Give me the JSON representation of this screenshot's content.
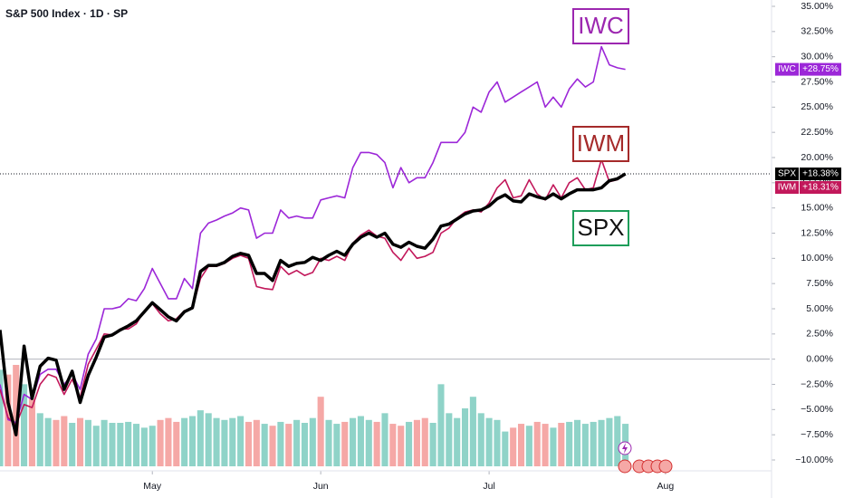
{
  "chart_data": {
    "type": "line",
    "title": "S&P 500 Index · 1D · SP",
    "x": [
      0,
      1,
      2,
      3,
      4,
      5,
      6,
      7,
      8,
      9,
      10,
      11,
      12,
      13,
      14,
      15,
      16,
      17,
      18,
      19,
      20,
      21,
      22,
      23,
      24,
      25,
      26,
      27,
      28,
      29,
      30,
      31,
      32,
      33,
      34,
      35,
      36,
      37,
      38,
      39,
      40,
      41,
      42,
      43,
      44,
      45,
      46,
      47,
      48,
      49,
      50,
      51,
      52,
      53,
      54,
      55,
      56,
      57,
      58,
      59,
      60,
      61,
      62,
      63,
      64,
      65,
      66,
      67,
      68,
      69,
      70,
      71,
      72,
      73,
      74,
      75,
      76,
      77,
      78
    ],
    "xlim": [
      0,
      96
    ],
    "xticks": [
      {
        "value": 19,
        "label": "May"
      },
      {
        "value": 40,
        "label": "Jun"
      },
      {
        "value": 61,
        "label": "Jul"
      },
      {
        "value": 83,
        "label": "Aug"
      }
    ],
    "ylim": [
      -10,
      35
    ],
    "yticks": [
      {
        "value": 35,
        "label": "35.00%"
      },
      {
        "value": 32.5,
        "label": "32.50%"
      },
      {
        "value": 30,
        "label": "30.00%"
      },
      {
        "value": 27.5,
        "label": "27.50%"
      },
      {
        "value": 25,
        "label": "25.00%"
      },
      {
        "value": 22.5,
        "label": "22.50%"
      },
      {
        "value": 20,
        "label": "20.00%"
      },
      {
        "value": 17.5,
        "label": "17.50%"
      },
      {
        "value": 15,
        "label": "15.00%"
      },
      {
        "value": 12.5,
        "label": "12.50%"
      },
      {
        "value": 10,
        "label": "10.00%"
      },
      {
        "value": 7.5,
        "label": "7.50%"
      },
      {
        "value": 5,
        "label": "5.00%"
      },
      {
        "value": 2.5,
        "label": "2.50%"
      },
      {
        "value": 0,
        "label": "0.00%"
      },
      {
        "value": -2.5,
        "label": "−2.50%"
      },
      {
        "value": -5,
        "label": "−5.00%"
      },
      {
        "value": -7.5,
        "label": "−7.50%"
      },
      {
        "value": -10,
        "label": "−10.00%"
      }
    ],
    "series": [
      {
        "name": "IWC",
        "color": "#9c27d8",
        "last_label": "+28.75%",
        "values": [
          -2.5,
          -6.0,
          -6.3,
          -3.5,
          -4.0,
          -1.5,
          -1.0,
          -1.0,
          -2.5,
          -1.5,
          -3.0,
          0.5,
          2.0,
          5.0,
          5.0,
          5.2,
          6.0,
          5.8,
          7.0,
          9.0,
          7.5,
          6.0,
          6.0,
          8.0,
          7.0,
          12.5,
          13.5,
          13.8,
          14.2,
          14.5,
          15.0,
          14.8,
          12.0,
          12.5,
          12.5,
          14.8,
          14.0,
          14.2,
          14.0,
          14.0,
          15.8,
          16.0,
          16.2,
          16.0,
          19.0,
          20.5,
          20.5,
          20.3,
          19.5,
          17.0,
          19.0,
          17.5,
          18.0,
          18.0,
          19.5,
          21.5,
          21.5,
          21.5,
          22.5,
          25.0,
          24.5,
          26.5,
          27.5,
          25.5,
          26.0,
          26.5,
          27.0,
          27.5,
          25.0,
          26.0,
          25.0,
          26.8,
          27.8,
          27.0,
          27.5,
          31.0,
          29.2,
          28.9,
          28.75
        ]
      },
      {
        "name": "IWM",
        "color": "#c2185b",
        "last_label": "+18.31%",
        "values": [
          -3.0,
          -5.8,
          -6.5,
          -4.5,
          -4.8,
          -2.5,
          -1.5,
          -1.8,
          -3.5,
          -2.0,
          -3.8,
          -0.5,
          1.0,
          2.5,
          2.4,
          3.0,
          3.0,
          3.5,
          4.8,
          5.5,
          4.5,
          3.8,
          4.0,
          4.8,
          5.0,
          8.0,
          9.2,
          9.2,
          9.5,
          10.0,
          10.3,
          10.0,
          7.2,
          7.0,
          6.9,
          9.2,
          8.4,
          8.8,
          8.3,
          8.6,
          10.0,
          9.8,
          10.2,
          9.8,
          11.5,
          12.3,
          12.8,
          12.2,
          12.0,
          10.6,
          9.8,
          11.0,
          10.0,
          10.2,
          10.6,
          12.5,
          13.0,
          14.0,
          14.6,
          14.8,
          14.6,
          15.5,
          17.0,
          17.8,
          16.0,
          16.2,
          17.8,
          16.4,
          15.8,
          17.3,
          16.0,
          17.5,
          18.0,
          16.8,
          17.0,
          19.8,
          17.6,
          17.8,
          18.31
        ]
      },
      {
        "name": "SPX",
        "color": "#000000",
        "last_label": "+18.38%",
        "values": [
          2.9,
          -4.3,
          -7.5,
          1.3,
          -3.9,
          -0.7,
          0.1,
          -0.1,
          -3.0,
          -1.2,
          -4.3,
          -1.6,
          0.2,
          2.2,
          2.4,
          2.9,
          3.3,
          3.8,
          4.7,
          5.6,
          4.9,
          4.2,
          3.8,
          4.7,
          5.1,
          8.7,
          9.3,
          9.3,
          9.6,
          10.2,
          10.5,
          10.3,
          8.5,
          8.5,
          7.8,
          9.8,
          9.2,
          9.5,
          9.6,
          10.1,
          9.8,
          10.3,
          10.7,
          10.3,
          11.4,
          12.1,
          12.5,
          12.1,
          12.5,
          11.4,
          11.1,
          11.6,
          11.2,
          11.0,
          11.9,
          13.2,
          13.4,
          13.9,
          14.4,
          14.7,
          14.8,
          15.2,
          15.9,
          16.3,
          15.7,
          15.6,
          16.4,
          16.1,
          15.9,
          16.4,
          15.9,
          16.4,
          16.8,
          16.8,
          16.8,
          17.0,
          17.7,
          17.9,
          18.38
        ]
      }
    ],
    "volume": [
      100,
      95,
      105,
      85,
      70,
      55,
      50,
      48,
      52,
      45,
      50,
      48,
      42,
      48,
      45,
      45,
      46,
      44,
      40,
      42,
      48,
      50,
      46,
      50,
      52,
      58,
      55,
      50,
      48,
      50,
      52,
      46,
      48,
      44,
      42,
      46,
      44,
      48,
      45,
      50,
      72,
      48,
      44,
      46,
      50,
      52,
      48,
      46,
      55,
      44,
      42,
      46,
      48,
      50,
      45,
      85,
      55,
      50,
      60,
      72,
      55,
      50,
      48,
      36,
      40,
      44,
      42,
      46,
      44,
      40,
      45,
      46,
      48,
      44,
      46,
      48,
      50,
      52,
      44
    ],
    "volume_colors": {
      "up": "#8fd3c8",
      "down": "#f5a8a6"
    },
    "annotations": [
      {
        "text": "IWC",
        "color": "#9c27b0"
      },
      {
        "text": "IWM",
        "color": "#a52a2a"
      },
      {
        "text": "SPX",
        "color": "#1e9e5a"
      }
    ]
  }
}
